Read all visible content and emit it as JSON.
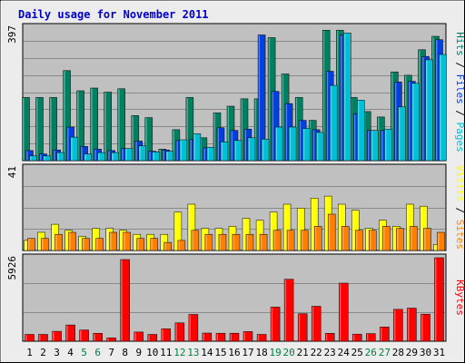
{
  "title": "Daily usage for November 2011",
  "colors": {
    "background": "#ececec",
    "panel": "#c0c0c0",
    "grid": "#8a8a8a",
    "pages": "#00c0d8",
    "files": "#0040e0",
    "hits": "#008060",
    "sites": "#ff8000",
    "visits": "#ffff00",
    "kbytes": "#ff0000",
    "title": "#0000c8",
    "weekday_label": "#000000",
    "weekend_label": "#008040"
  },
  "chart_data": {
    "type": "bar",
    "categories": [
      "1",
      "2",
      "3",
      "4",
      "5",
      "6",
      "7",
      "8",
      "9",
      "10",
      "11",
      "12",
      "13",
      "14",
      "15",
      "16",
      "17",
      "18",
      "19",
      "20",
      "21",
      "22",
      "23",
      "24",
      "25",
      "26",
      "27",
      "28",
      "29",
      "30",
      "31"
    ],
    "weekend_days": [
      "5",
      "6",
      "12",
      "13",
      "19",
      "20",
      "26",
      "27"
    ],
    "x_axis_colors": {
      "weekday": "#000000",
      "weekend": "#008040"
    },
    "panels": [
      {
        "id": "top",
        "ymax_label": "397",
        "ymax": 397,
        "right_labels": [
          {
            "text": "Hits",
            "color": "#008060"
          },
          {
            "text": " / ",
            "color": "#000000"
          },
          {
            "text": "Files",
            "color": "#0040e0"
          },
          {
            "text": " / ",
            "color": "#000000"
          },
          {
            "text": "Pages",
            "color": "#00c0d8"
          }
        ],
        "series": [
          {
            "name": "Hits",
            "color": "#008060",
            "values": [
              188,
              188,
              188,
              268,
              208,
              216,
              204,
              214,
              134,
              128,
              34,
              92,
              188,
              68,
              142,
              162,
              184,
              184,
              366,
              258,
              188,
              120,
              388,
              388,
              188,
              146,
              130,
              264,
              254,
              330,
              370
            ]
          },
          {
            "name": "Files",
            "color": "#0040e0",
            "values": [
              30,
              20,
              32,
              100,
              42,
              34,
              30,
              36,
              58,
              28,
              32,
              60,
              64,
              38,
              98,
              90,
              94,
              374,
              206,
              170,
              120,
              92,
              266,
              374,
              140,
              90,
              90,
              234,
              236,
              310,
              360
            ]
          },
          {
            "name": "Pages",
            "color": "#00c0d8",
            "values": [
              14,
              14,
              24,
              70,
              20,
              24,
              24,
              36,
              44,
              26,
              28,
              62,
              80,
              40,
              56,
              60,
              68,
              64,
              100,
              100,
              96,
              84,
              224,
              380,
              180,
              90,
              94,
              160,
              230,
              300,
              316
            ]
          }
        ]
      },
      {
        "id": "middle",
        "ymax_label": "41",
        "ymax": 41,
        "right_labels": [
          {
            "text": "Visits",
            "color": "#ffff00"
          },
          {
            "text": " / ",
            "color": "#000000"
          },
          {
            "text": "Sites",
            "color": "#ff8000"
          }
        ],
        "series": [
          {
            "name": "Visits",
            "color": "#ffff00",
            "values": [
              5,
              9,
              13,
              10,
              7,
              11,
              11,
              10,
              8,
              8,
              8,
              19,
              23,
              11,
              11,
              12,
              16,
              15,
              19,
              23,
              21,
              26,
              27,
              23,
              20,
              11,
              15,
              12,
              23,
              22,
              3
            ]
          },
          {
            "name": "Sites",
            "color": "#ff8000",
            "values": [
              6,
              6,
              8,
              9,
              6,
              6,
              9,
              9,
              6,
              6,
              4,
              5,
              10,
              8,
              8,
              8,
              8,
              8,
              10,
              10,
              10,
              12,
              18,
              12,
              10,
              10,
              12,
              11,
              12,
              11,
              9
            ]
          }
        ]
      },
      {
        "id": "bottom",
        "ymax_label": "5926",
        "ymax": 5926,
        "right_labels": [
          {
            "text": "KBytes",
            "color": "#ff0000"
          }
        ],
        "series": [
          {
            "name": "KBytes",
            "color": "#ff0000",
            "values": [
              480,
              480,
              700,
              1150,
              800,
              560,
              240,
              5800,
              650,
              480,
              880,
              1300,
              1900,
              580,
              570,
              570,
              680,
              480,
              2420,
              4400,
              1950,
              2480,
              560,
              4120,
              500,
              540,
              1010,
              2260,
              2350,
              1920,
              5926
            ]
          }
        ]
      }
    ]
  }
}
